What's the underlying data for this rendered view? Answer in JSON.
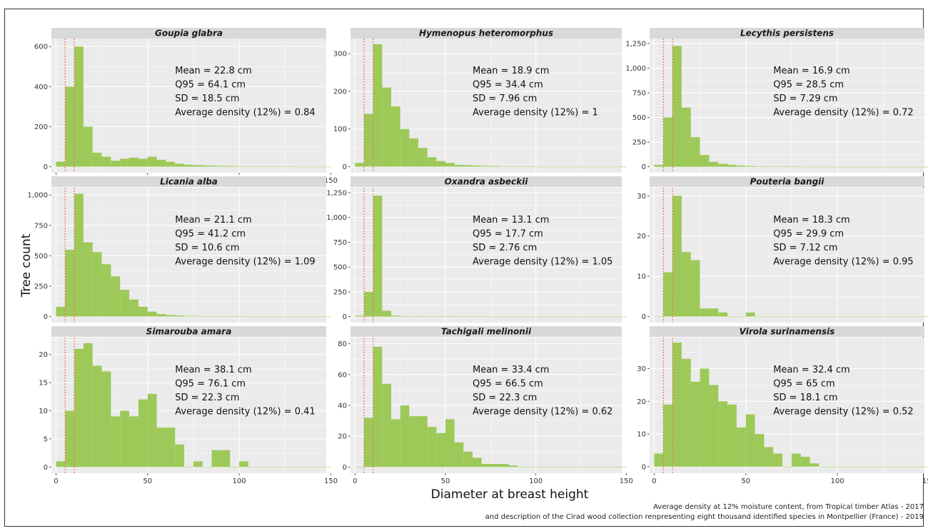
{
  "figure": {
    "xlabel": "Diameter at breast height",
    "ylabel": "Tree count",
    "caption_line1": "Average density at 12% moisture content, from Tropical timber Atlas - 2017",
    "caption_line2": "and description of the Cirad wood collection renpresenting eight thousand identified species in Montpellier (France) - 2019",
    "colors": {
      "bar": "#9dc959",
      "panel_bg": "#ebebeb",
      "strip_bg": "#d9d9d9",
      "grid": "#ffffff",
      "threshold_line": "#e8735a"
    }
  },
  "chart_data": [
    {
      "type": "bar",
      "title": "Goupia glabra",
      "bin_width": 5,
      "bin_start": 0,
      "xlim": [
        -2.5,
        147.5
      ],
      "x_ticks": [
        0,
        50,
        100,
        150
      ],
      "ylim": [
        -30,
        640
      ],
      "y_ticks": [
        0,
        200,
        400,
        600
      ],
      "y_tick_labels": [
        "0",
        "200",
        "400",
        "600"
      ],
      "thresholds": [
        5,
        10
      ],
      "values": [
        25,
        400,
        600,
        200,
        70,
        50,
        30,
        40,
        45,
        40,
        50,
        35,
        25,
        15,
        10,
        8,
        6,
        5,
        4,
        3,
        2,
        2,
        1,
        1,
        1,
        1,
        0,
        0,
        0,
        0
      ],
      "stats": [
        "Mean = 22.8 cm",
        "Q95 = 64.1 cm",
        "SD = 18.5 cm",
        "Average density (12%) = 0.84"
      ]
    },
    {
      "type": "bar",
      "title": "Hymenopus heteromorphus",
      "bin_width": 5,
      "bin_start": 0,
      "xlim": [
        -2.5,
        147.5
      ],
      "x_ticks": [],
      "ylim": [
        -16,
        340
      ],
      "y_ticks": [
        0,
        100,
        200,
        300
      ],
      "y_tick_labels": [
        "0",
        "100",
        "200",
        "300"
      ],
      "thresholds": [
        5,
        10
      ],
      "values": [
        10,
        140,
        325,
        210,
        160,
        100,
        75,
        50,
        25,
        15,
        10,
        5,
        4,
        3,
        2,
        2,
        1,
        1,
        1,
        1,
        0,
        0,
        0,
        0,
        0,
        0,
        0,
        0,
        0,
        0
      ],
      "stats": [
        "Mean = 18.9 cm",
        "Q95 = 34.4 cm",
        "SD = 7.96 cm",
        "Average density (12%) = 1"
      ]
    },
    {
      "type": "bar",
      "title": "Lecythis persistens",
      "bin_width": 5,
      "bin_start": 0,
      "xlim": [
        -2.5,
        147.5
      ],
      "x_ticks": [],
      "ylim": [
        -60,
        1300
      ],
      "y_ticks": [
        0,
        250,
        500,
        750,
        1000,
        1250
      ],
      "y_tick_labels": [
        "0",
        "250",
        "500",
        "750",
        "1,000",
        "1,250"
      ],
      "thresholds": [
        5,
        10
      ],
      "values": [
        20,
        500,
        1225,
        600,
        300,
        120,
        50,
        30,
        20,
        12,
        8,
        5,
        4,
        3,
        2,
        2,
        1,
        1,
        1,
        1,
        0,
        0,
        0,
        0,
        0,
        0,
        0,
        0,
        0,
        0
      ],
      "stats": [
        "Mean = 16.9 cm",
        "Q95 = 28.5 cm",
        "SD = 7.29 cm",
        "Average density (12%) = 0.72"
      ]
    },
    {
      "type": "bar",
      "title": "Licania alba",
      "bin_width": 5,
      "bin_start": 0,
      "xlim": [
        -2.5,
        147.5
      ],
      "x_ticks": [],
      "ylim": [
        -50,
        1060
      ],
      "y_ticks": [
        0,
        250,
        500,
        750,
        1000
      ],
      "y_tick_labels": [
        "0",
        "250",
        "500",
        "750",
        "1,000"
      ],
      "thresholds": [
        5,
        10
      ],
      "values": [
        80,
        550,
        1010,
        610,
        530,
        430,
        330,
        220,
        140,
        80,
        40,
        20,
        12,
        8,
        5,
        4,
        3,
        2,
        2,
        1,
        1,
        0,
        0,
        0,
        0,
        0,
        0,
        0,
        0,
        0
      ],
      "stats": [
        "Mean = 21.1 cm",
        "Q95 = 41.2 cm",
        "SD = 10.6 cm",
        "Average density (12%) = 1.09"
      ]
    },
    {
      "type": "bar",
      "title": "Oxandra asbeckii",
      "bin_width": 5,
      "bin_start": 0,
      "xlim": [
        -2.5,
        147.5
      ],
      "x_ticks": [],
      "ylim": [
        -60,
        1300
      ],
      "y_ticks": [
        0,
        250,
        500,
        750,
        1000,
        1250
      ],
      "y_tick_labels": [
        "0",
        "250",
        "500",
        "750",
        "1,000",
        "1,250"
      ],
      "thresholds": [
        5,
        10
      ],
      "values": [
        10,
        250,
        1220,
        60,
        10,
        5,
        3,
        2,
        1,
        1,
        5,
        1,
        1,
        1,
        1,
        0,
        0,
        0,
        0,
        0,
        0,
        0,
        0,
        0,
        0,
        0,
        0,
        0,
        0,
        0
      ],
      "stats": [
        "Mean = 13.1 cm",
        "Q95 = 17.7 cm",
        "SD = 2.76 cm",
        "Average density (12%) = 1.05"
      ]
    },
    {
      "type": "bar",
      "title": "Pouteria bangii",
      "bin_width": 5,
      "bin_start": 0,
      "xlim": [
        -2.5,
        147.5
      ],
      "x_ticks": [],
      "ylim": [
        -1.5,
        32
      ],
      "y_ticks": [
        0,
        10,
        20,
        30
      ],
      "y_tick_labels": [
        "0",
        "10",
        "20",
        "30"
      ],
      "thresholds": [
        5,
        10
      ],
      "values": [
        0,
        11,
        30,
        16,
        14,
        2,
        2,
        1,
        0,
        0,
        1,
        0,
        0,
        0,
        0,
        0,
        0,
        0,
        0,
        0,
        0,
        0,
        0,
        0,
        0,
        0,
        0,
        0,
        0,
        0
      ],
      "stats": [
        "Mean = 18.3 cm",
        "Q95 = 29.9 cm",
        "SD = 7.12 cm",
        "Average density (12%) = 0.95"
      ]
    },
    {
      "type": "bar",
      "title": "Simarouba amara",
      "bin_width": 5,
      "bin_start": 0,
      "xlim": [
        -2.5,
        147.5
      ],
      "x_ticks": [
        0,
        50,
        100,
        150
      ],
      "ylim": [
        -1.1,
        23
      ],
      "y_ticks": [
        0,
        5,
        10,
        15,
        20
      ],
      "y_tick_labels": [
        "0",
        "5",
        "10",
        "15",
        "20"
      ],
      "thresholds": [
        5,
        10
      ],
      "values": [
        1,
        10,
        21,
        22,
        18,
        17,
        9,
        10,
        9,
        12,
        13,
        7,
        7,
        4,
        0,
        1,
        0,
        3,
        3,
        0,
        1,
        0,
        0,
        0,
        0,
        0,
        0,
        0,
        0,
        0
      ],
      "stats": [
        "Mean = 38.1 cm",
        "Q95 = 76.1 cm",
        "SD = 22.3 cm",
        "Average density (12%) = 0.41"
      ]
    },
    {
      "type": "bar",
      "title": "Tachigali melinonii",
      "bin_width": 5,
      "bin_start": 0,
      "xlim": [
        -2.5,
        147.5
      ],
      "x_ticks": [
        0,
        50,
        100,
        150
      ],
      "ylim": [
        -4,
        84
      ],
      "y_ticks": [
        0,
        20,
        40,
        60,
        80
      ],
      "y_tick_labels": [
        "0",
        "20",
        "40",
        "60",
        "80"
      ],
      "thresholds": [
        5,
        10
      ],
      "values": [
        0,
        32,
        78,
        54,
        31,
        40,
        33,
        33,
        26,
        22,
        31,
        16,
        10,
        6,
        2,
        2,
        2,
        1,
        0,
        0,
        0,
        0,
        0,
        0,
        0,
        0,
        0,
        0,
        0,
        0
      ],
      "stats": [
        "Mean = 33.4 cm",
        "Q95 = 66.5 cm",
        "SD = 22.3 cm",
        "Average density (12%) = 0.62"
      ]
    },
    {
      "type": "bar",
      "title": "Virola surinamensis",
      "bin_width": 5,
      "bin_start": 0,
      "xlim": [
        -2.5,
        147.5
      ],
      "x_ticks": [
        0,
        50,
        100,
        150
      ],
      "ylim": [
        -2,
        39.5
      ],
      "y_ticks": [
        0,
        10,
        20,
        30
      ],
      "y_tick_labels": [
        "0",
        "10",
        "20",
        "30"
      ],
      "thresholds": [
        5,
        10
      ],
      "values": [
        4,
        19,
        38,
        33,
        26,
        30,
        25,
        20,
        19,
        12,
        16,
        10,
        6,
        4,
        0,
        4,
        3,
        1,
        0,
        0,
        0,
        0,
        0,
        0,
        0,
        0,
        0,
        0,
        0,
        0
      ],
      "stats": [
        "Mean = 32.4 cm",
        "Q95 = 65 cm",
        "SD = 18.1 cm",
        "Average density (12%) = 0.52"
      ]
    }
  ]
}
